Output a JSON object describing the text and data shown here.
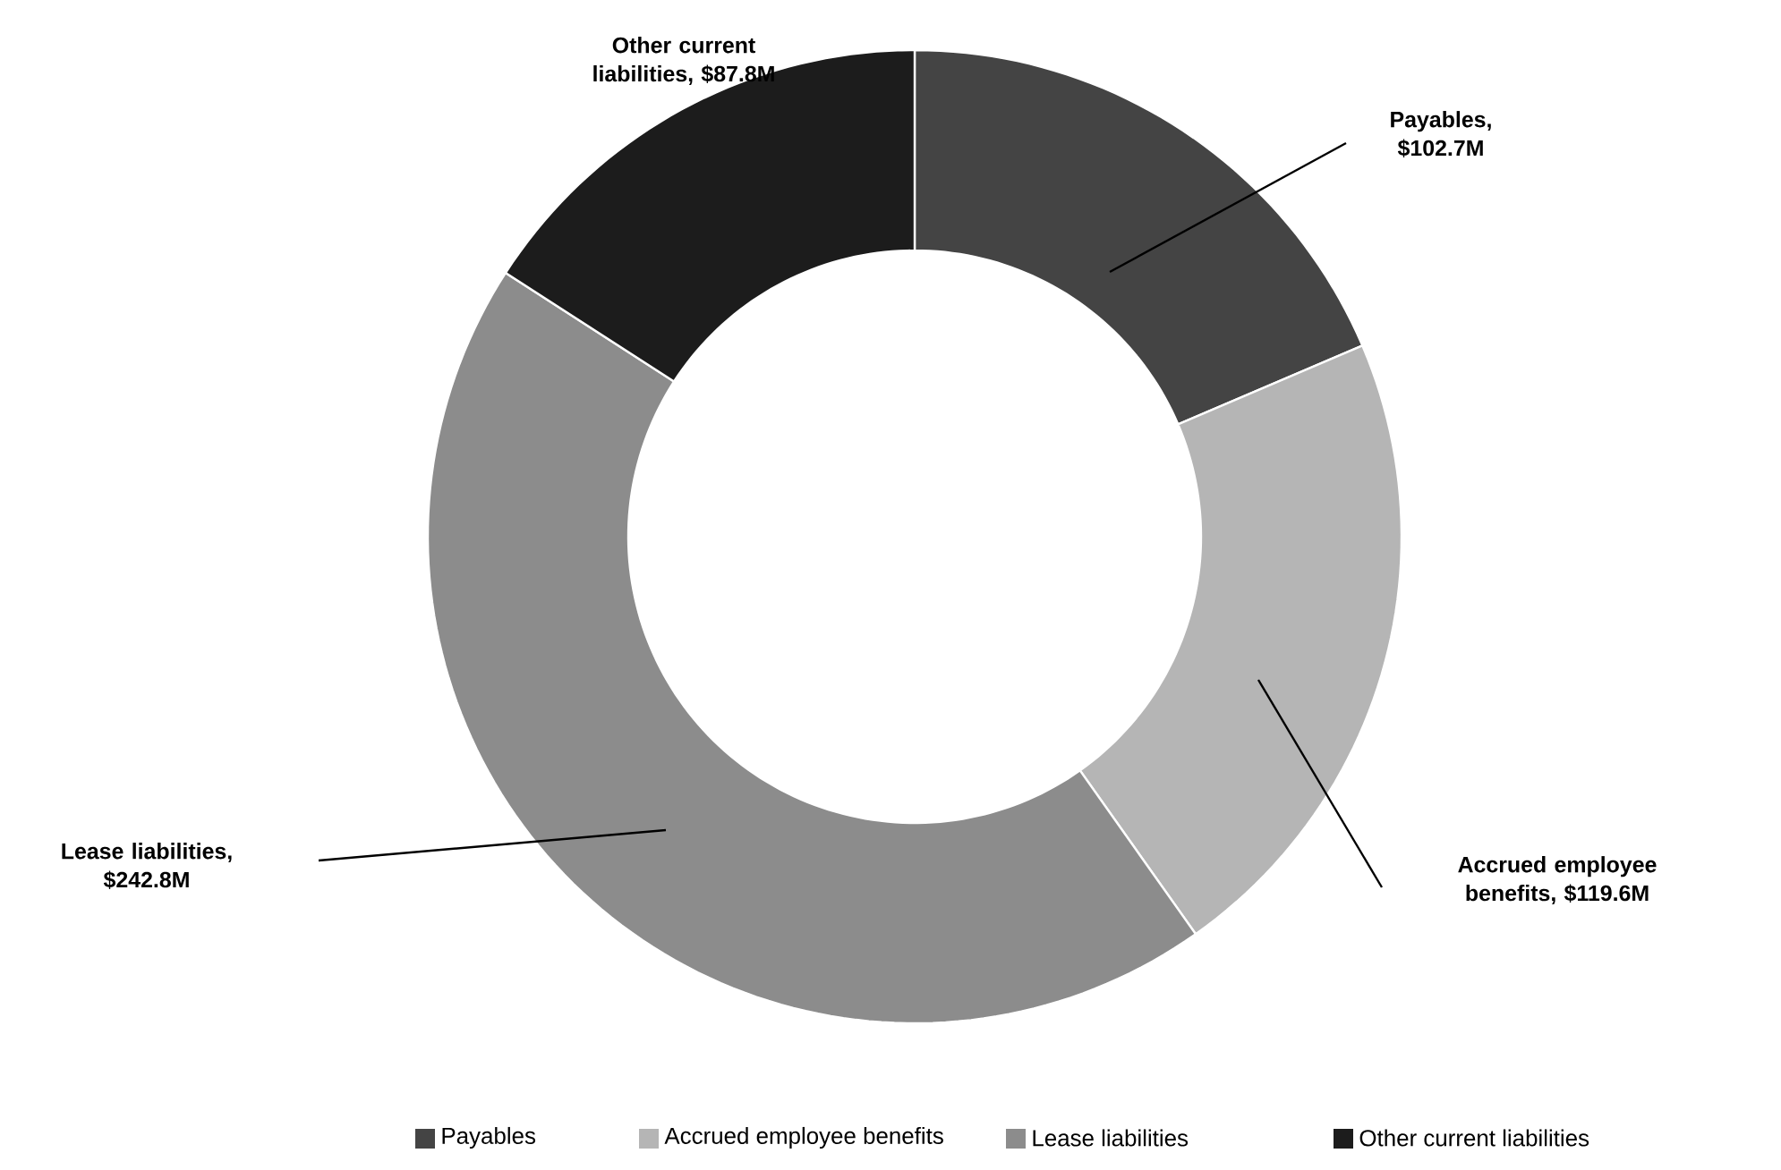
{
  "chart_data": {
    "type": "donut",
    "categories": [
      "Payables",
      "Accrued employee benefits",
      "Lease liabilities",
      "Other current liabilities"
    ],
    "values": [
      102.7,
      119.6,
      242.8,
      87.8
    ],
    "colors": [
      "#444444",
      "#b5b5b5",
      "#8c8c8c",
      "#1c1c1c"
    ],
    "value_labels": [
      "Payables, $102.7M",
      "Accrued employee benefits, $119.6M",
      "Lease liabilities, $242.8M",
      "Other current liabilities, $87.8M"
    ],
    "legend": "bottom"
  }
}
